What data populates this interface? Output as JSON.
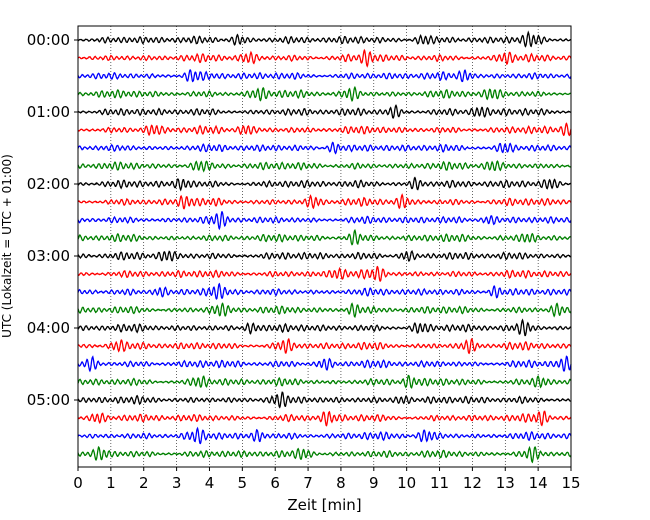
{
  "chart_data": {
    "type": "line",
    "title": "",
    "xlabel": "Zeit  [min]",
    "ylabel": "UTC (Lokalzeit = UTC + 01:00)",
    "xlim": [
      0,
      15
    ],
    "x_ticks": [
      "0",
      "1",
      "2",
      "3",
      "4",
      "5",
      "6",
      "7",
      "8",
      "9",
      "10",
      "11",
      "12",
      "13",
      "14",
      "15"
    ],
    "y_ticks": [
      "00:00",
      "01:00",
      "02:00",
      "03:00",
      "04:00",
      "05:00"
    ],
    "y_tick_rows": [
      0,
      4,
      8,
      12,
      16,
      20
    ],
    "grid": "vertical dotted at each minute",
    "trace_colors": [
      "#000000",
      "#ff0000",
      "#0000ff",
      "#008000"
    ],
    "row_interval_minutes": 15,
    "num_rows": 24,
    "traces": [
      {
        "row": 0,
        "start": "00:00",
        "color": "#000000",
        "bursts_min": [
          4.9,
          10.5,
          13.8
        ]
      },
      {
        "row": 1,
        "start": "00:15",
        "color": "#ff0000",
        "bursts_min": [
          5.2,
          8.8,
          13.0
        ]
      },
      {
        "row": 2,
        "start": "00:30",
        "color": "#0000ff",
        "bursts_min": [
          3.5,
          11.8
        ]
      },
      {
        "row": 3,
        "start": "00:45",
        "color": "#008000",
        "bursts_min": [
          5.5,
          8.3,
          12.6
        ]
      },
      {
        "row": 4,
        "start": "01:00",
        "color": "#000000",
        "bursts_min": [
          9.6,
          12.2
        ]
      },
      {
        "row": 5,
        "start": "01:15",
        "color": "#ff0000",
        "bursts_min": [
          2.3,
          5.1,
          14.9
        ]
      },
      {
        "row": 6,
        "start": "01:30",
        "color": "#0000ff",
        "bursts_min": [
          7.8,
          13.0
        ]
      },
      {
        "row": 7,
        "start": "01:45",
        "color": "#008000",
        "bursts_min": [
          3.7,
          12.6
        ]
      },
      {
        "row": 8,
        "start": "02:00",
        "color": "#000000",
        "bursts_min": [
          3.2,
          10.3,
          14.4
        ]
      },
      {
        "row": 9,
        "start": "02:15",
        "color": "#ff0000",
        "bursts_min": [
          3.3,
          7.2,
          9.9
        ]
      },
      {
        "row": 10,
        "start": "02:30",
        "color": "#0000ff",
        "bursts_min": [
          4.3,
          12.5
        ]
      },
      {
        "row": 11,
        "start": "02:45",
        "color": "#008000",
        "bursts_min": [
          8.4,
          13.7
        ]
      },
      {
        "row": 12,
        "start": "03:00",
        "color": "#000000",
        "bursts_min": [
          2.7,
          10.0
        ]
      },
      {
        "row": 13,
        "start": "03:15",
        "color": "#ff0000",
        "bursts_min": [
          7.9,
          9.1
        ]
      },
      {
        "row": 14,
        "start": "03:30",
        "color": "#0000ff",
        "bursts_min": [
          2.5,
          4.2,
          12.7
        ]
      },
      {
        "row": 15,
        "start": "03:45",
        "color": "#008000",
        "bursts_min": [
          4.3,
          8.4,
          14.6
        ]
      },
      {
        "row": 16,
        "start": "04:00",
        "color": "#000000",
        "bursts_min": [
          5.3,
          10.4,
          13.6
        ]
      },
      {
        "row": 17,
        "start": "04:15",
        "color": "#ff0000",
        "bursts_min": [
          1.2,
          6.3,
          11.9
        ]
      },
      {
        "row": 18,
        "start": "04:30",
        "color": "#0000ff",
        "bursts_min": [
          0.4,
          7.5,
          14.8
        ]
      },
      {
        "row": 19,
        "start": "04:45",
        "color": "#008000",
        "bursts_min": [
          3.7,
          10.1,
          14.1
        ]
      },
      {
        "row": 20,
        "start": "05:00",
        "color": "#000000",
        "bursts_min": [
          6.1,
          9.9
        ]
      },
      {
        "row": 21,
        "start": "05:15",
        "color": "#ff0000",
        "bursts_min": [
          0.6,
          7.6,
          14.1
        ]
      },
      {
        "row": 22,
        "start": "05:30",
        "color": "#0000ff",
        "bursts_min": [
          3.6,
          5.5,
          10.6
        ]
      },
      {
        "row": 23,
        "start": "05:45",
        "color": "#008000",
        "bursts_min": [
          0.7,
          6.9,
          13.8
        ]
      }
    ]
  }
}
